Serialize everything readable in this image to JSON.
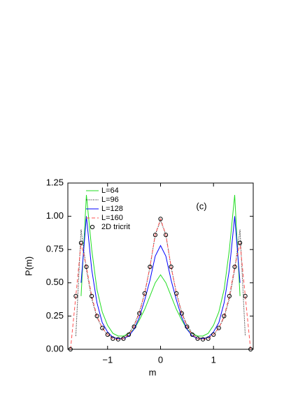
{
  "chart_data": {
    "type": "line",
    "xlabel": "m",
    "ylabel": "P(m)",
    "annotation": "(c)",
    "x": [
      -1.7,
      -1.6,
      -1.5,
      -1.4,
      -1.3,
      -1.2,
      -1.1,
      -1.0,
      -0.9,
      -0.8,
      -0.7,
      -0.6,
      -0.5,
      -0.4,
      -0.3,
      -0.2,
      -0.1,
      0,
      0.1,
      0.2,
      0.3,
      0.4,
      0.5,
      0.6,
      0.7,
      0.8,
      0.9,
      1.0,
      1.1,
      1.2,
      1.3,
      1.4,
      1.5,
      1.6,
      1.7
    ],
    "series": [
      {
        "name": "L=64",
        "color": "#22dd22",
        "line_style": "solid",
        "values": [
          null,
          null,
          0.4,
          1.16,
          0.75,
          0.45,
          0.28,
          0.18,
          0.12,
          0.1,
          0.1,
          0.12,
          0.15,
          0.22,
          0.3,
          0.4,
          0.5,
          0.56,
          0.5,
          0.4,
          0.3,
          0.22,
          0.15,
          0.12,
          0.1,
          0.1,
          0.12,
          0.18,
          0.28,
          0.45,
          0.75,
          1.16,
          0.4,
          null,
          null
        ]
      },
      {
        "name": "L=96",
        "color": "#000000",
        "line_style": "dotted",
        "values": [
          null,
          0.1,
          0.9,
          0.6,
          0.38,
          0.24,
          0.16,
          0.11,
          0.09,
          0.08,
          0.09,
          0.12,
          0.18,
          0.28,
          0.42,
          0.62,
          0.86,
          0.97,
          0.86,
          0.62,
          0.42,
          0.28,
          0.18,
          0.12,
          0.09,
          0.08,
          0.09,
          0.11,
          0.16,
          0.24,
          0.38,
          0.6,
          0.9,
          0.1,
          null
        ]
      },
      {
        "name": "L=128",
        "color": "#0000ff",
        "line_style": "solid",
        "values": [
          null,
          null,
          0.5,
          1.0,
          0.6,
          0.35,
          0.2,
          0.13,
          0.09,
          0.08,
          0.08,
          0.1,
          0.15,
          0.24,
          0.37,
          0.52,
          0.7,
          0.78,
          0.7,
          0.52,
          0.37,
          0.24,
          0.15,
          0.1,
          0.08,
          0.08,
          0.09,
          0.13,
          0.2,
          0.35,
          0.6,
          1.0,
          0.5,
          null,
          null
        ]
      },
      {
        "name": "L=160",
        "color": "#ff5050",
        "line_style": "dashed",
        "values": [
          0.0,
          0.4,
          0.8,
          0.62,
          0.4,
          0.25,
          0.16,
          0.11,
          0.08,
          0.075,
          0.08,
          0.11,
          0.17,
          0.27,
          0.42,
          0.62,
          0.86,
          0.98,
          0.86,
          0.62,
          0.42,
          0.27,
          0.17,
          0.11,
          0.08,
          0.075,
          0.08,
          0.11,
          0.16,
          0.25,
          0.4,
          0.62,
          0.8,
          0.4,
          0.0
        ]
      },
      {
        "name": "2D tricrit",
        "color": "#000000",
        "marker": "circle",
        "values": [
          0.0,
          0.4,
          0.8,
          0.62,
          0.4,
          0.25,
          0.16,
          0.11,
          0.08,
          0.075,
          0.08,
          0.11,
          0.17,
          0.27,
          0.42,
          0.62,
          0.86,
          0.98,
          0.86,
          0.62,
          0.42,
          0.27,
          0.17,
          0.11,
          0.08,
          0.075,
          0.08,
          0.11,
          0.16,
          0.25,
          0.4,
          0.62,
          0.8,
          0.4,
          0.0
        ]
      }
    ],
    "xlim": [
      -1.75,
      1.75
    ],
    "ylim": [
      0,
      1.25
    ],
    "xticks": [
      {
        "value": -1,
        "label": "−1"
      },
      0,
      1
    ],
    "yticks": [
      {
        "value": 0,
        "label": "0.00"
      },
      {
        "value": 0.25,
        "label": "0.25"
      },
      {
        "value": 0.5,
        "label": "0.50"
      },
      {
        "value": 0.75,
        "label": "0.75"
      },
      {
        "value": 1,
        "label": "1.00"
      },
      {
        "value": 1.25,
        "label": "1.25"
      }
    ],
    "legend": "upper left"
  }
}
